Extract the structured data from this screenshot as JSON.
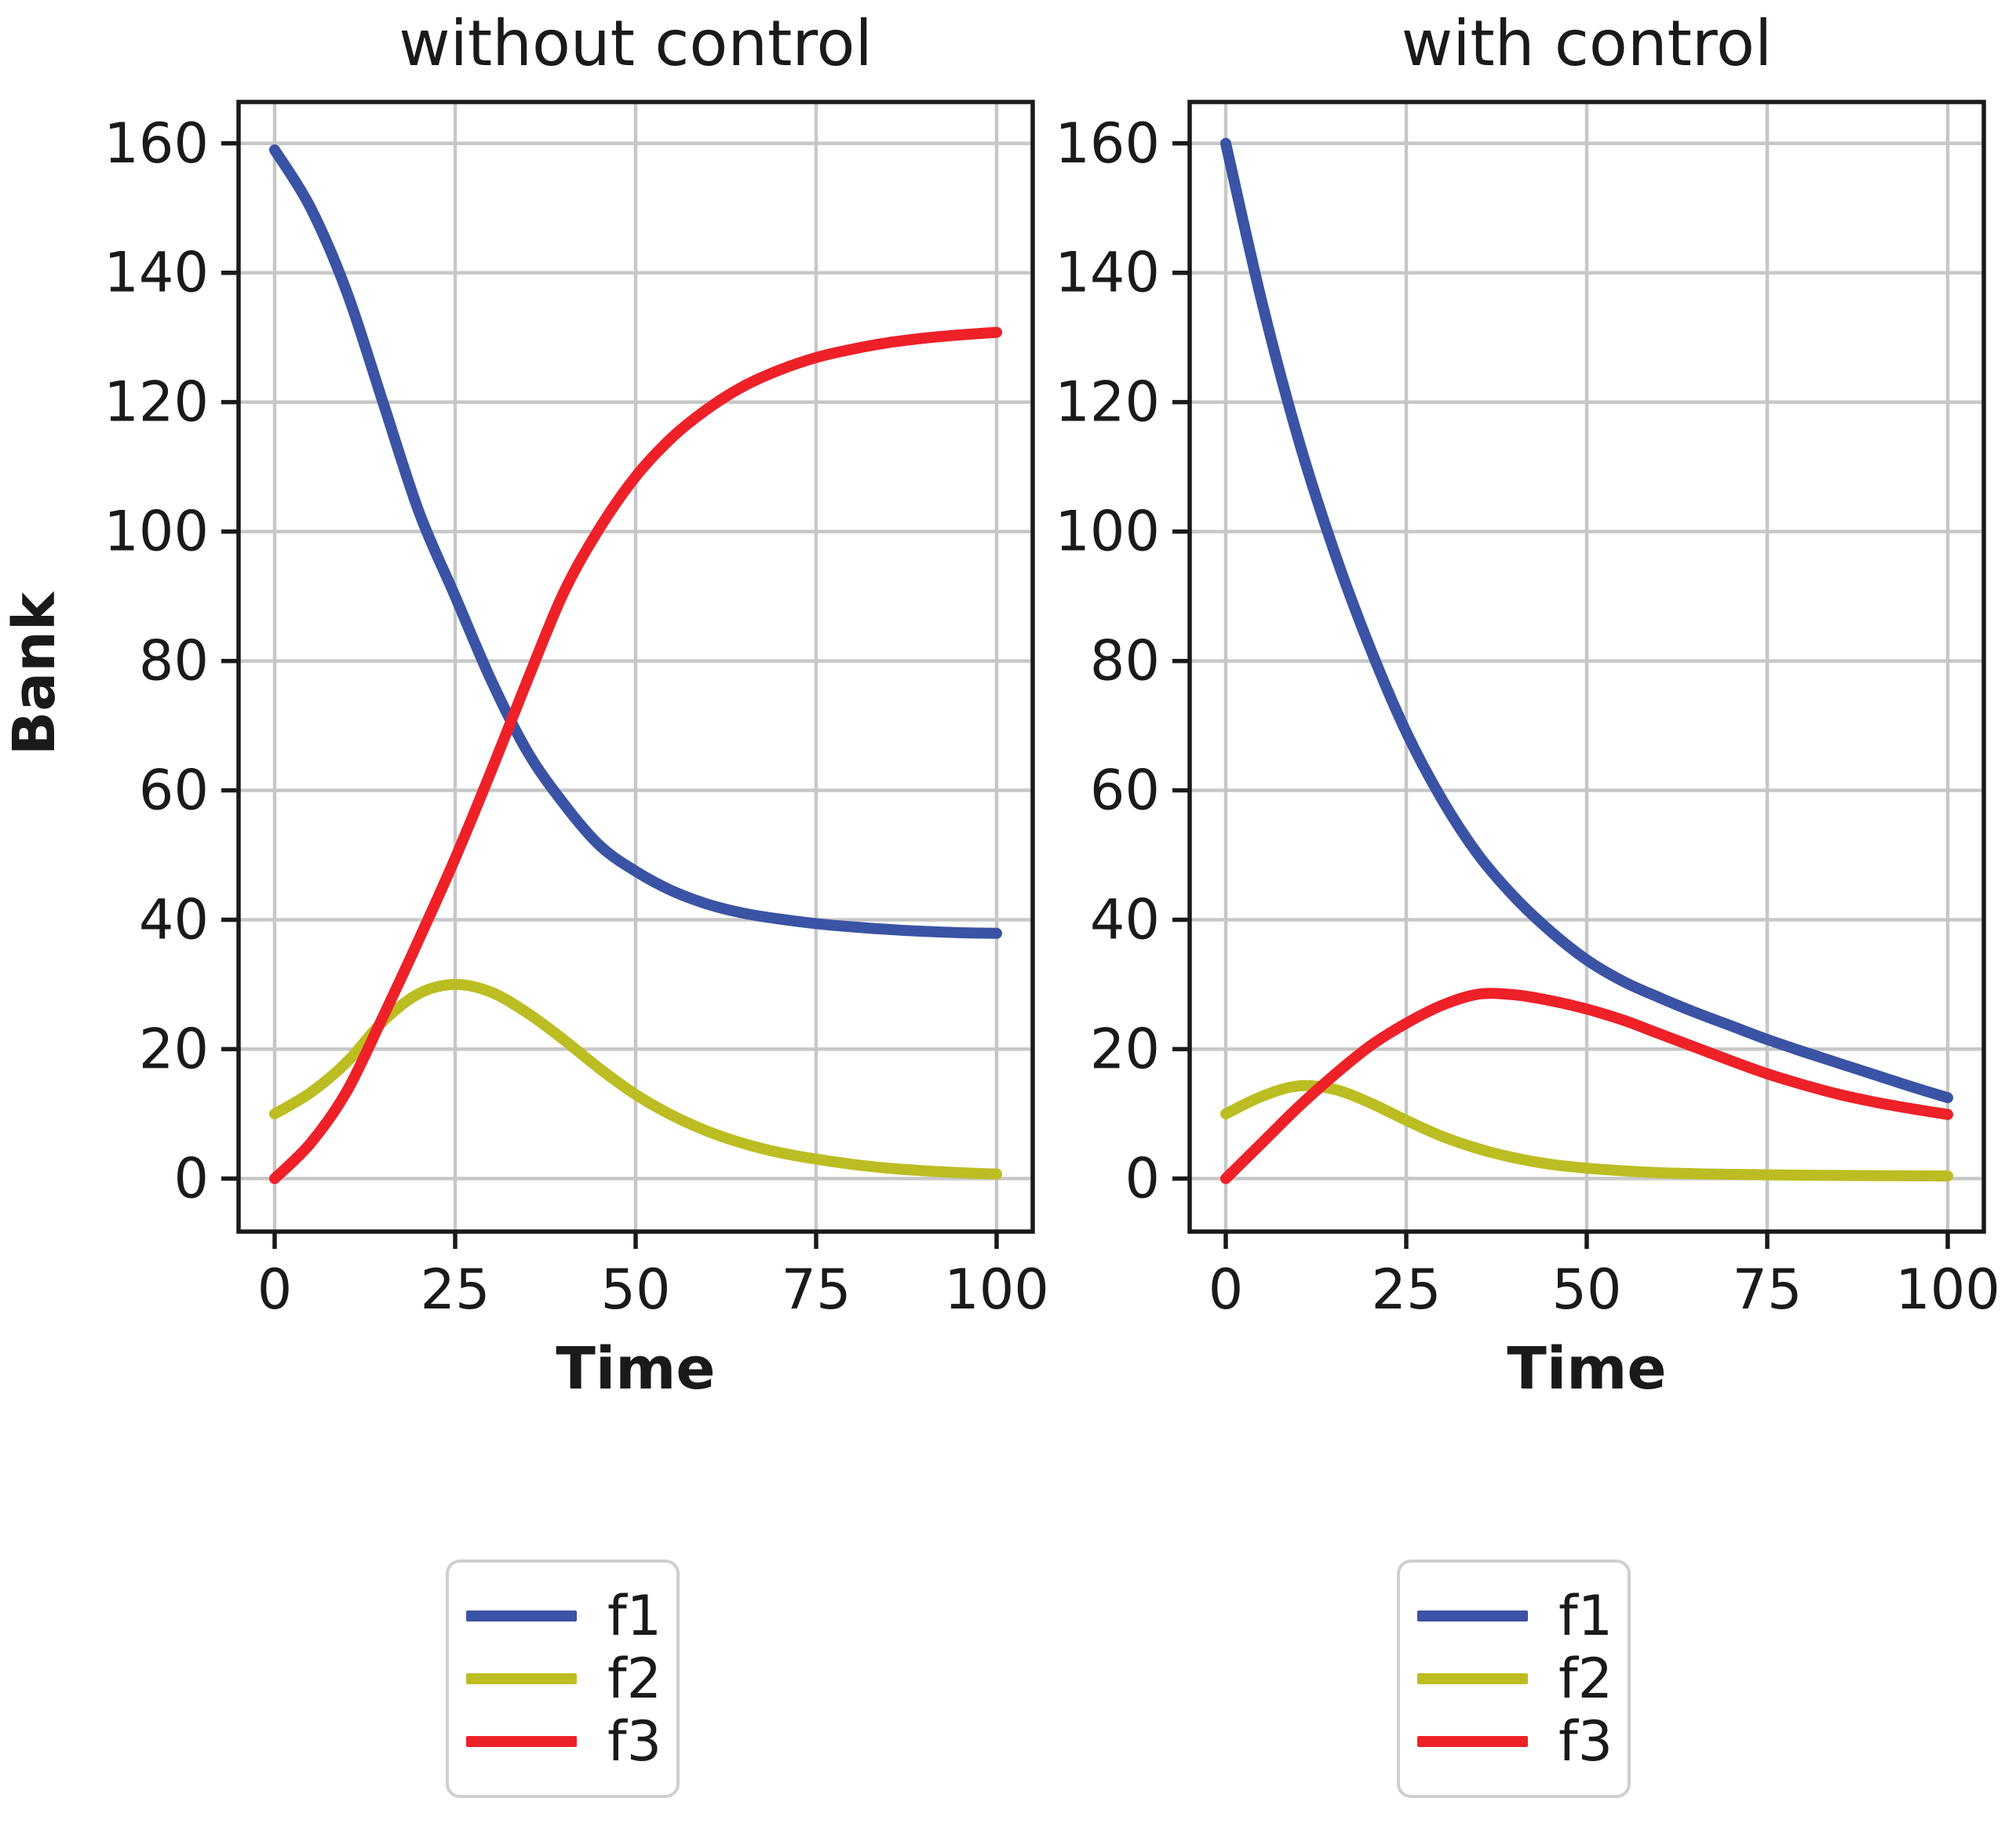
{
  "figure": {
    "background_color": "#ffffff",
    "grid_color": "#c7c7c7",
    "spine_color": "#1a1a1a",
    "legend_border_color": "#cfcfcf"
  },
  "chart_data": [
    {
      "type": "line",
      "title": "without control",
      "xlabel": "Time",
      "ylabel": "Bank",
      "xlim": [
        -5,
        105
      ],
      "ylim": [
        -8.2,
        166.4
      ],
      "xticks": [
        0,
        25,
        50,
        75,
        100
      ],
      "yticks": [
        0,
        20,
        40,
        60,
        80,
        100,
        120,
        140,
        160
      ],
      "grid": true,
      "legend_position": "below",
      "x": [
        0,
        5,
        10,
        15,
        20,
        25,
        30,
        35,
        40,
        45,
        50,
        55,
        60,
        65,
        70,
        75,
        80,
        85,
        90,
        95,
        100
      ],
      "series": [
        {
          "name": "f1",
          "color": "#3a53a4",
          "values": [
            159,
            150,
            137,
            120,
            103,
            90,
            77,
            66,
            58,
            51.5,
            47.5,
            44.5,
            42.4,
            41,
            40.1,
            39.4,
            38.9,
            38.5,
            38.2,
            38,
            37.9
          ]
        },
        {
          "name": "f2",
          "color": "#bcbd22",
          "values": [
            10,
            13.3,
            18,
            24.3,
            28.6,
            30,
            28.8,
            25.6,
            21.5,
            17,
            13,
            9.8,
            7.3,
            5.4,
            4,
            3,
            2.2,
            1.6,
            1.2,
            0.9,
            0.7
          ]
        },
        {
          "name": "f3",
          "color": "#ee2128",
          "values": [
            0,
            5.5,
            13.5,
            25,
            37,
            49.5,
            63,
            77,
            90.5,
            100.5,
            108.5,
            114.5,
            119,
            122.5,
            125,
            126.9,
            128.2,
            129.2,
            129.9,
            130.4,
            130.8
          ]
        }
      ]
    },
    {
      "type": "line",
      "title": "with control",
      "xlabel": "Time",
      "ylabel": "",
      "xlim": [
        -5,
        105
      ],
      "ylim": [
        -8.2,
        166.4
      ],
      "xticks": [
        0,
        25,
        50,
        75,
        100
      ],
      "yticks": [
        0,
        20,
        40,
        60,
        80,
        100,
        120,
        140,
        160
      ],
      "grid": true,
      "legend_position": "below",
      "x": [
        0,
        5,
        10,
        15,
        20,
        25,
        30,
        35,
        40,
        45,
        50,
        55,
        60,
        65,
        70,
        75,
        80,
        85,
        90,
        95,
        100
      ],
      "series": [
        {
          "name": "f1",
          "color": "#3a53a4",
          "values": [
            160,
            135.5,
            114.5,
            97,
            82,
            69,
            58.5,
            50,
            43.5,
            38.2,
            33.8,
            30.5,
            28,
            25.7,
            23.6,
            21.5,
            19.6,
            17.8,
            16,
            14.2,
            12.5
          ]
        },
        {
          "name": "f2",
          "color": "#bcbd22",
          "values": [
            10,
            12.7,
            14.3,
            13.8,
            11.7,
            9,
            6.5,
            4.6,
            3.2,
            2.2,
            1.6,
            1.2,
            0.9,
            0.75,
            0.65,
            0.58,
            0.52,
            0.48,
            0.45,
            0.42,
            0.4
          ]
        },
        {
          "name": "f3",
          "color": "#ee2128",
          "values": [
            0,
            5.5,
            11,
            16,
            20.5,
            24,
            26.8,
            28.5,
            28.4,
            27.5,
            26.2,
            24.5,
            22.4,
            20.3,
            18.2,
            16.2,
            14.5,
            13,
            11.8,
            10.8,
            9.9
          ]
        }
      ]
    }
  ]
}
